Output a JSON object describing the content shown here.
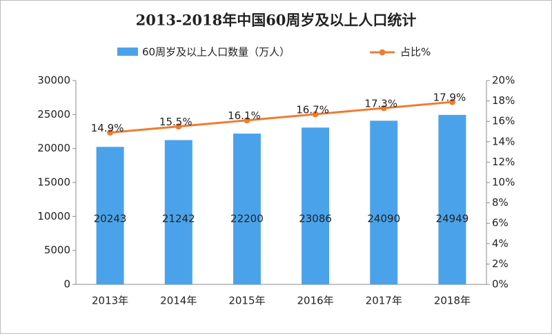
{
  "chart_data": {
    "type": "bar_line",
    "title": "2013-2018年中国60周岁及以上人口统计",
    "categories": [
      "2013年",
      "2014年",
      "2015年",
      "2016年",
      "2017年",
      "2018年"
    ],
    "series": [
      {
        "name": "60周岁及以上人口数量（万人）",
        "color": "#4aa3ea",
        "type": "bar",
        "values": [
          20243,
          21242,
          22200,
          23086,
          24090,
          24949
        ]
      },
      {
        "name": "占比%",
        "color": "#ed7d31",
        "type": "line",
        "axis": "y2",
        "values": [
          14.9,
          15.5,
          16.1,
          16.7,
          17.3,
          17.9
        ],
        "value_labels": [
          "14.9%",
          "15.5%",
          "16.1%",
          "16.7%",
          "17.3%",
          "17.9%"
        ]
      }
    ],
    "ylim": [
      0,
      30000
    ],
    "yticks": [
      0,
      5000,
      10000,
      15000,
      20000,
      25000,
      30000
    ],
    "y2lim": [
      0,
      20
    ],
    "y2ticks": [
      {
        "value": 0,
        "label": "0%"
      },
      {
        "value": 2,
        "label": "2%"
      },
      {
        "value": 4,
        "label": "4%"
      },
      {
        "value": 6,
        "label": "6%"
      },
      {
        "value": 8,
        "label": "8%"
      },
      {
        "value": 10,
        "label": "10%"
      },
      {
        "value": 12,
        "label": "12%"
      },
      {
        "value": 14,
        "label": "14%"
      },
      {
        "value": 16,
        "label": "16%"
      },
      {
        "value": 18,
        "label": "18%"
      },
      {
        "value": 20,
        "label": "20%"
      }
    ],
    "legend": "top"
  }
}
